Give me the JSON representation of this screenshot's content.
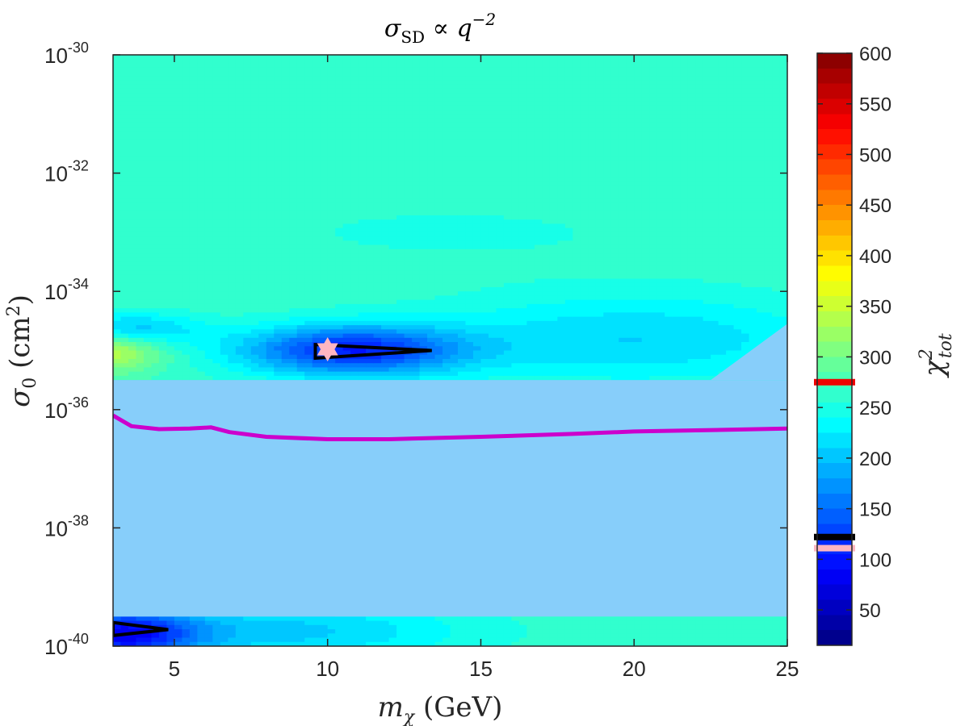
{
  "chart_data": {
    "type": "heatmap",
    "title": {
      "sym": "σ",
      "sub": "SD",
      "mid": " ∝ ",
      "var": "q",
      "sup": "−2"
    },
    "xlabel": {
      "sym": "m",
      "sub": "χ",
      "rest": " (GeV)"
    },
    "ylabel": {
      "sym": "σ",
      "sub": "0",
      "rest": " (cm",
      "sup": "2",
      "close": ")"
    },
    "colorbar_label": {
      "sym": "χ",
      "sup": "2",
      "sub": "tot"
    },
    "xlim": [
      3,
      25
    ],
    "ylim_log10": [
      -40,
      -30
    ],
    "y_scale": "log",
    "x_ticks": [
      5,
      10,
      15,
      20,
      25
    ],
    "x_tick_labels": [
      "5",
      "10",
      "15",
      "20",
      "25"
    ],
    "y_ticks": [
      {
        "exp": -30,
        "base": "10",
        "sup": "-30"
      },
      {
        "exp": -32,
        "base": "10",
        "sup": "-32"
      },
      {
        "exp": -34,
        "base": "10",
        "sup": "-34"
      },
      {
        "exp": -36,
        "base": "10",
        "sup": "-36"
      },
      {
        "exp": -38,
        "base": "10",
        "sup": "-38"
      },
      {
        "exp": -40,
        "base": "10",
        "sup": "-40"
      }
    ],
    "colorbar": {
      "range": [
        15,
        600
      ],
      "ticks": [
        50,
        100,
        150,
        200,
        250,
        300,
        350,
        400,
        450,
        500,
        550,
        600
      ],
      "tick_labels": [
        "50",
        "100",
        "150",
        "200",
        "250",
        "300",
        "350",
        "400",
        "450",
        "500",
        "550",
        "600"
      ],
      "markers": [
        {
          "value": 275,
          "color": "#ee0000"
        },
        {
          "value": 122,
          "color": "#000000"
        },
        {
          "value": 111,
          "color": "#ffb6c1"
        }
      ]
    },
    "grid": false,
    "background_chi2": 265,
    "excluded_band_log10": [
      -39.5,
      -35.5
    ],
    "excluded_band_color": "#87cefa",
    "excluded_triangle": [
      [
        22.5,
        -35.5
      ],
      [
        25,
        -34.55
      ],
      [
        25,
        -35.5
      ]
    ],
    "chi2_blobs": [
      {
        "x": 3,
        "y": -35.0,
        "sx": 1.6,
        "sy": 0.35,
        "amp": 80,
        "bound": [
          3,
          6.5,
          -35.5,
          -34.1
        ]
      },
      {
        "x": 10.8,
        "y": -35.0,
        "sx": 3.6,
        "sy": 0.42,
        "amp": -155
      },
      {
        "x": 3.5,
        "y": -34.65,
        "sx": 2.2,
        "sy": 0.28,
        "amp": -75
      },
      {
        "x": 20,
        "y": -34.8,
        "sx": 6.5,
        "sy": 0.75,
        "amp": -55
      },
      {
        "x": 14,
        "y": -33.0,
        "sx": 9.0,
        "sy": 0.65,
        "amp": -12
      },
      {
        "x": 3.3,
        "y": -39.8,
        "sx": 2.4,
        "sy": 0.42,
        "amp": -160
      },
      {
        "x": 8.5,
        "y": -39.75,
        "sx": 6.0,
        "sy": 0.5,
        "amp": -60
      }
    ],
    "contours": [
      {
        "name": "upper-contour",
        "points": [
          [
            9.6,
            -34.9
          ],
          [
            13.4,
            -35.0
          ],
          [
            9.6,
            -35.13
          ]
        ],
        "color": "#000000"
      },
      {
        "name": "lower-contour",
        "points": [
          [
            3.0,
            -39.6
          ],
          [
            4.8,
            -39.72
          ],
          [
            3.0,
            -39.82
          ]
        ],
        "color": "#000000"
      }
    ],
    "exclusion_limit": {
      "color": "#cc00cc",
      "x": [
        3,
        3.6,
        4.5,
        5.5,
        6.2,
        6.8,
        8,
        10,
        12,
        15,
        18,
        20,
        22,
        25
      ],
      "y_log10": [
        -36.1,
        -36.28,
        -36.33,
        -36.32,
        -36.3,
        -36.38,
        -36.46,
        -36.5,
        -36.5,
        -36.46,
        -36.41,
        -36.37,
        -36.35,
        -36.32
      ]
    },
    "best_fit_point": {
      "x": 10,
      "y_log10": -34.98,
      "color": "#ffb6c1",
      "marker": "hexagram"
    }
  }
}
